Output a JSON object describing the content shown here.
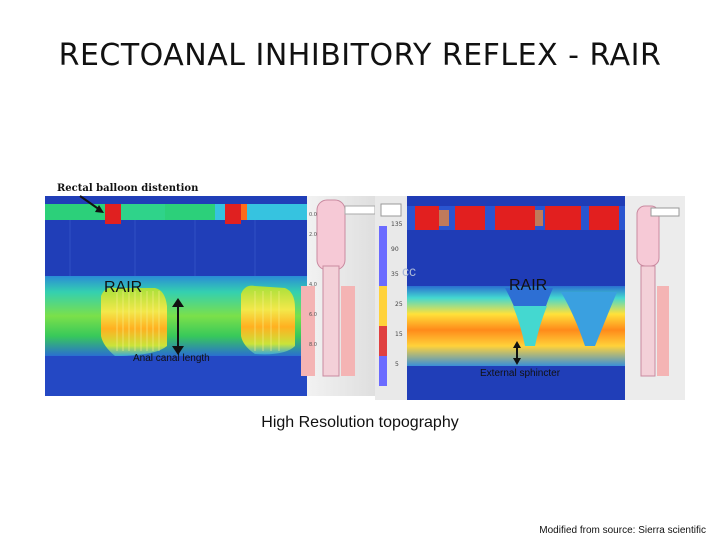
{
  "slide": {
    "title": "RECTOANAL INHIBITORY REFLEX - RAIR",
    "annotations": {
      "balloon": "Rectal balloon distention",
      "rair_left": "RAIR",
      "rair_right": "RAIR",
      "anal_canal_length": "Anal canal length",
      "external_sphincter": "External sphincter",
      "cc": "cc"
    },
    "caption": "High Resolution topography",
    "source": "Modified from source: Sierra scientific"
  },
  "colors": {
    "low_pressure": "#1f3fbf",
    "mid_pressure": "#2fd36a",
    "high_pressure": "#e01f1f",
    "peak_pressure": "#ffe23a"
  }
}
